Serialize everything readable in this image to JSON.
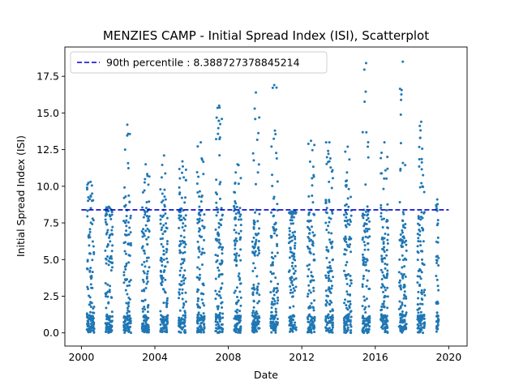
{
  "chart_data": {
    "type": "scatter",
    "title": "MENZIES CAMP - Initial Spread Index (ISI), Scatterplot",
    "xlabel": "Date",
    "ylabel": "Initial Spread Index (ISI)",
    "xlim": [
      1999.1,
      2021.0
    ],
    "ylim": [
      -0.9,
      19.5
    ],
    "x_ticks": [
      2000,
      2004,
      2008,
      2012,
      2016,
      2020
    ],
    "x_tick_labels": [
      "2000",
      "2004",
      "2008",
      "2012",
      "2016",
      "2020"
    ],
    "y_ticks": [
      0.0,
      2.5,
      5.0,
      7.5,
      10.0,
      12.5,
      15.0,
      17.5
    ],
    "y_tick_labels": [
      "0.0",
      "2.5",
      "5.0",
      "7.5",
      "10.0",
      "12.5",
      "15.0",
      "17.5"
    ],
    "grid": false,
    "legend_placement": "top-left",
    "point_color": "#1f77b4",
    "percentile": {
      "label": "90th percentile : 8.388727378845214",
      "value": 8.388727378845214,
      "color": "#0000cc",
      "style": "dashed"
    },
    "series": [
      {
        "name": "",
        "seasons": [
          {
            "year": 2000,
            "start": 2000.3,
            "end": 2000.7,
            "max": 10.3
          },
          {
            "year": 2001,
            "start": 2001.3,
            "end": 2001.7,
            "max": 8.6
          },
          {
            "year": 2002,
            "start": 2002.3,
            "end": 2002.7,
            "max": 14.2
          },
          {
            "year": 2003,
            "start": 2003.3,
            "end": 2003.7,
            "max": 11.5
          },
          {
            "year": 2004,
            "start": 2004.3,
            "end": 2004.7,
            "max": 12.1
          },
          {
            "year": 2005,
            "start": 2005.3,
            "end": 2005.7,
            "max": 11.7
          },
          {
            "year": 2006,
            "start": 2006.3,
            "end": 2006.7,
            "max": 13.0
          },
          {
            "year": 2007,
            "start": 2007.3,
            "end": 2007.7,
            "max": 15.5
          },
          {
            "year": 2008,
            "start": 2008.3,
            "end": 2008.7,
            "max": 11.5
          },
          {
            "year": 2009,
            "start": 2009.3,
            "end": 2009.7,
            "max": 16.4
          },
          {
            "year": 2010,
            "start": 2010.3,
            "end": 2010.7,
            "max": 16.9
          },
          {
            "year": 2011,
            "start": 2011.3,
            "end": 2011.7,
            "max": 8.1
          },
          {
            "year": 2012,
            "start": 2012.3,
            "end": 2012.7,
            "max": 13.1
          },
          {
            "year": 2013,
            "start": 2013.3,
            "end": 2013.7,
            "max": 13.0
          },
          {
            "year": 2014,
            "start": 2014.3,
            "end": 2014.7,
            "max": 12.7
          },
          {
            "year": 2015,
            "start": 2015.3,
            "end": 2015.7,
            "max": 18.4
          },
          {
            "year": 2016,
            "start": 2016.3,
            "end": 2016.7,
            "max": 13.0
          },
          {
            "year": 2017,
            "start": 2017.3,
            "end": 2017.7,
            "max": 18.5
          },
          {
            "year": 2018,
            "start": 2018.3,
            "end": 2018.7,
            "max": 14.4
          },
          {
            "year": 2019,
            "start": 2019.3,
            "end": 2019.45,
            "max": 9.1
          }
        ]
      }
    ]
  }
}
